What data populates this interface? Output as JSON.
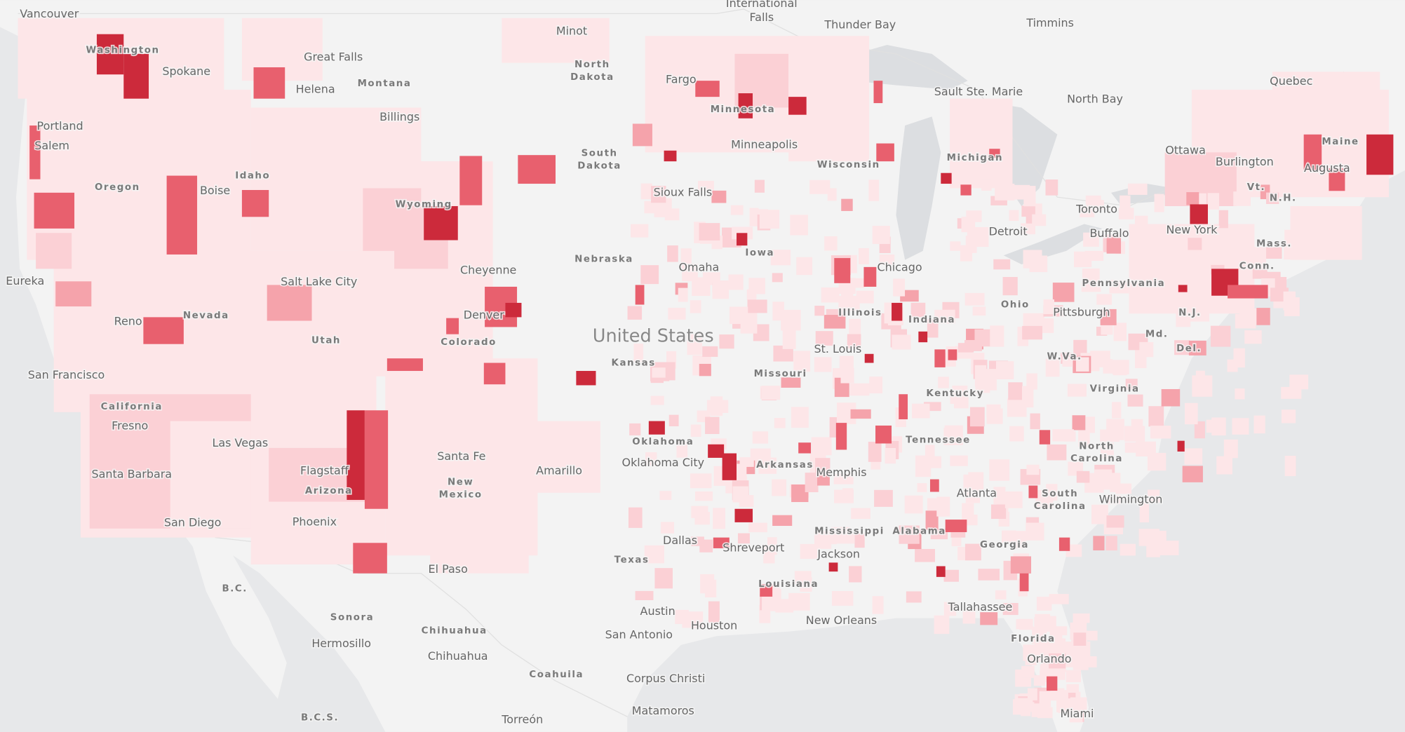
{
  "map": {
    "labels": [
      "Vancouver",
      "International",
      "Falls",
      "Thunder Bay",
      "Timmins",
      "Minot",
      "Great Falls",
      "Spokane",
      "Washington",
      "North",
      "Dakota",
      "Fargo",
      "Montana",
      "Helena",
      "Billings",
      "Portland",
      "Salem",
      "Minnesota",
      "Sault Ste. Marie",
      "North Bay",
      "Quebec",
      "Maine",
      "Michigan",
      "Ottawa",
      "Burlington",
      "Augusta",
      "Vt.",
      "N.H.",
      "South",
      "Dakota",
      "Minneapolis",
      "Wisconsin",
      "Idaho",
      "Oregon",
      "Boise",
      "Sioux Falls",
      "Wyoming",
      "Toronto",
      "Detroit",
      "Buffalo",
      "New York",
      "Mass.",
      "Conn.",
      "Nebraska",
      "Omaha",
      "Iowa",
      "Chicago",
      "Cheyenne",
      "Eureka",
      "Salt Lake City",
      "Pennsylvania",
      "Reno",
      "Nevada",
      "Denver",
      "Utah",
      "Colorado",
      "Illinois",
      "Indiana",
      "Ohio",
      "Pittsburgh",
      "N.J.",
      "United States",
      "Kansas",
      "St. Louis",
      "Md.",
      "Del.",
      "W.Va.",
      "San Francisco",
      "Missouri",
      "Virginia",
      "California",
      "Kentucky",
      "Fresno",
      "Las Vegas",
      "Oklahoma",
      "Tennessee",
      "North",
      "Carolina",
      "Flagstaff",
      "Santa Fe",
      "Oklahoma City",
      "Arkansas",
      "Memphis",
      "Santa Barbara",
      "Arizona",
      "Amarillo",
      "New",
      "Mexico",
      "Atlanta",
      "South",
      "Carolina",
      "Wilmington",
      "San Diego",
      "Phoenix",
      "Mississippi",
      "Alabama",
      "Dallas",
      "Shreveport",
      "Georgia",
      "Texas",
      "Jackson",
      "El Paso",
      "B.C.",
      "Louisiana",
      "Tallahassee",
      "Sonora",
      "Chihuahua",
      "Chihuahua",
      "Austin",
      "Houston",
      "Hermosillo",
      "San Antonio",
      "New Orleans",
      "Florida",
      "Orlando",
      "Coahuila",
      "Corpus Christi",
      "B.C.S.",
      "Matamoros",
      "Torreón",
      "Miami"
    ]
  }
}
